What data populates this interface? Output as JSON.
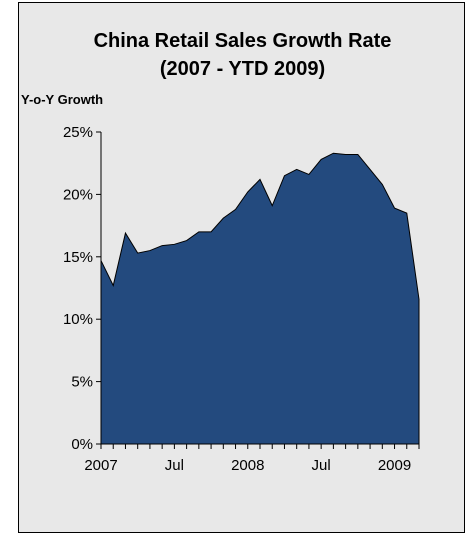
{
  "chart_data": {
    "type": "area",
    "title_line1": "China Retail Sales Growth Rate",
    "title_line2": "(2007 - YTD 2009)",
    "ylabel": "Y-o-Y Growth",
    "xlabel": "",
    "x_tick_labels": [
      "2007",
      "Jul",
      "2008",
      "Jul",
      "2009"
    ],
    "y_tick_labels": [
      "0%",
      "5%",
      "10%",
      "15%",
      "20%",
      "25%"
    ],
    "ylim": [
      0,
      25
    ],
    "x": [
      "2007-01",
      "2007-02",
      "2007-03",
      "2007-04",
      "2007-05",
      "2007-06",
      "2007-07",
      "2007-08",
      "2007-09",
      "2007-10",
      "2007-11",
      "2007-12",
      "2008-01",
      "2008-02",
      "2008-03",
      "2008-04",
      "2008-05",
      "2008-06",
      "2008-07",
      "2008-08",
      "2008-09",
      "2008-10",
      "2008-11",
      "2008-12",
      "2009-01",
      "2009-02",
      "2009-03"
    ],
    "values": [
      14.7,
      12.7,
      16.9,
      15.3,
      15.5,
      15.9,
      16.0,
      16.3,
      17.0,
      17.0,
      18.1,
      18.8,
      20.2,
      21.2,
      19.1,
      21.5,
      22.0,
      21.6,
      22.8,
      23.3,
      23.2,
      23.2,
      22.0,
      20.8,
      18.9,
      18.5,
      11.6
    ],
    "grid": false,
    "colors": {
      "fill": "#234a7e",
      "plot_bg": "#e8e8e8",
      "frame_bg": "#e8e8e8"
    }
  }
}
